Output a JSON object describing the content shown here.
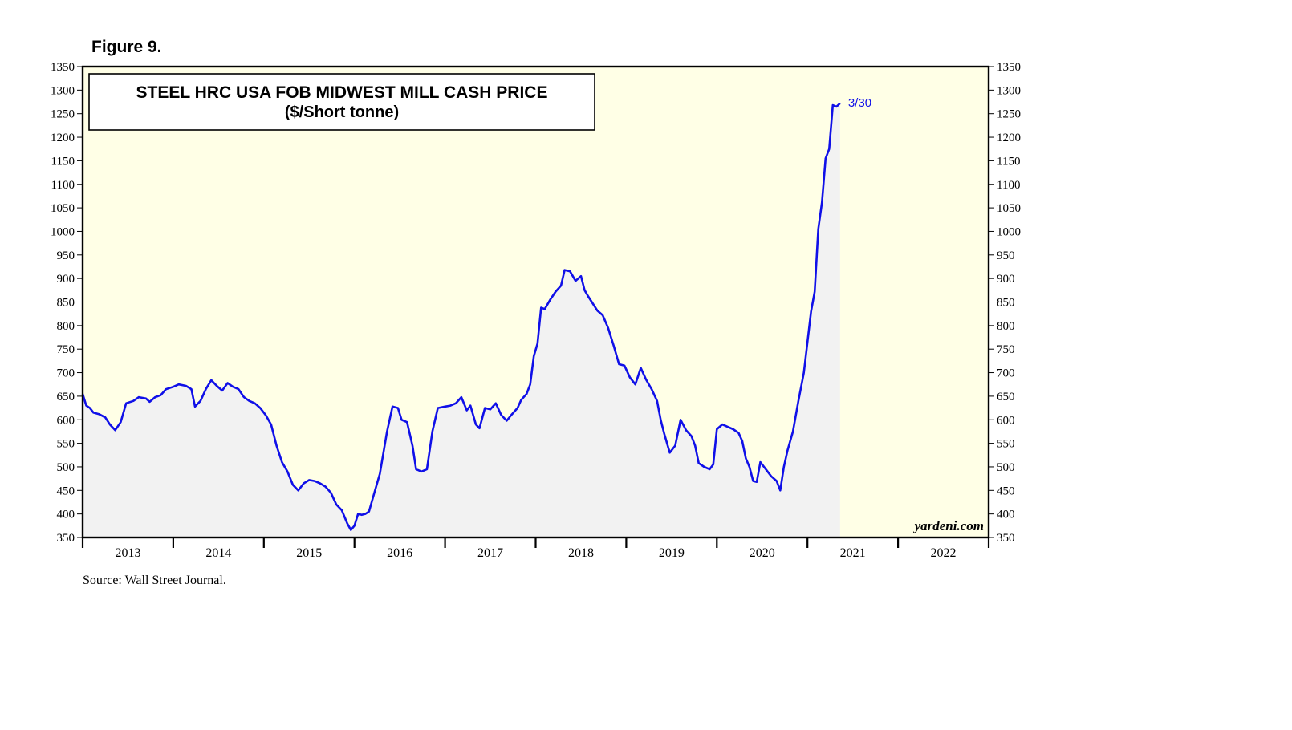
{
  "figure_label": "Figure 9.",
  "source": "Source: Wall Street Journal.",
  "watermark": "yardeni.com",
  "colors": {
    "plot_bg": "#ffffe6",
    "area_fill": "#f2f2f2",
    "line": "#1010e8",
    "frame": "#000000"
  },
  "chart_data": {
    "type": "line",
    "title": "STEEL HRC USA FOB MIDWEST MILL CASH PRICE",
    "subtitle": "($/Short tonne)",
    "xlabel": "",
    "ylabel": "",
    "ylim": [
      350,
      1350
    ],
    "yticks": [
      350,
      400,
      450,
      500,
      550,
      600,
      650,
      700,
      750,
      800,
      850,
      900,
      950,
      1000,
      1050,
      1100,
      1150,
      1200,
      1250,
      1300,
      1350
    ],
    "xlim": [
      2013.0,
      2023.0
    ],
    "x_tick_labels": [
      "2013",
      "2014",
      "2015",
      "2016",
      "2017",
      "2018",
      "2019",
      "2020",
      "2021",
      "2022"
    ],
    "grid": false,
    "legend": "none",
    "end_label": "3/30",
    "series": [
      {
        "values": [
          [
            2013.0,
            655
          ],
          [
            2013.04,
            630
          ],
          [
            2013.08,
            625
          ],
          [
            2013.12,
            615
          ],
          [
            2013.18,
            612
          ],
          [
            2013.25,
            605
          ],
          [
            2013.3,
            590
          ],
          [
            2013.36,
            578
          ],
          [
            2013.42,
            595
          ],
          [
            2013.48,
            635
          ],
          [
            2013.56,
            640
          ],
          [
            2013.62,
            648
          ],
          [
            2013.7,
            645
          ],
          [
            2013.74,
            638
          ],
          [
            2013.8,
            648
          ],
          [
            2013.86,
            652
          ],
          [
            2013.92,
            665
          ],
          [
            2014.0,
            670
          ],
          [
            2014.06,
            675
          ],
          [
            2014.14,
            672
          ],
          [
            2014.2,
            665
          ],
          [
            2014.24,
            628
          ],
          [
            2014.3,
            640
          ],
          [
            2014.36,
            665
          ],
          [
            2014.42,
            684
          ],
          [
            2014.48,
            672
          ],
          [
            2014.54,
            662
          ],
          [
            2014.6,
            678
          ],
          [
            2014.66,
            670
          ],
          [
            2014.72,
            665
          ],
          [
            2014.78,
            648
          ],
          [
            2014.84,
            640
          ],
          [
            2014.9,
            635
          ],
          [
            2014.96,
            625
          ],
          [
            2015.02,
            610
          ],
          [
            2015.08,
            590
          ],
          [
            2015.14,
            545
          ],
          [
            2015.2,
            510
          ],
          [
            2015.26,
            490
          ],
          [
            2015.32,
            462
          ],
          [
            2015.38,
            450
          ],
          [
            2015.44,
            465
          ],
          [
            2015.5,
            472
          ],
          [
            2015.56,
            470
          ],
          [
            2015.62,
            465
          ],
          [
            2015.68,
            458
          ],
          [
            2015.74,
            445
          ],
          [
            2015.8,
            420
          ],
          [
            2015.86,
            408
          ],
          [
            2015.92,
            380
          ],
          [
            2015.96,
            366
          ],
          [
            2016.0,
            375
          ],
          [
            2016.04,
            400
          ],
          [
            2016.08,
            398
          ],
          [
            2016.12,
            400
          ],
          [
            2016.16,
            405
          ],
          [
            2016.22,
            445
          ],
          [
            2016.28,
            485
          ],
          [
            2016.32,
            530
          ],
          [
            2016.36,
            575
          ],
          [
            2016.42,
            628
          ],
          [
            2016.48,
            625
          ],
          [
            2016.52,
            600
          ],
          [
            2016.58,
            595
          ],
          [
            2016.64,
            545
          ],
          [
            2016.68,
            495
          ],
          [
            2016.74,
            490
          ],
          [
            2016.8,
            495
          ],
          [
            2016.86,
            575
          ],
          [
            2016.92,
            625
          ],
          [
            2017.0,
            628
          ],
          [
            2017.06,
            630
          ],
          [
            2017.12,
            635
          ],
          [
            2017.18,
            648
          ],
          [
            2017.24,
            620
          ],
          [
            2017.28,
            630
          ],
          [
            2017.34,
            590
          ],
          [
            2017.38,
            582
          ],
          [
            2017.44,
            625
          ],
          [
            2017.5,
            622
          ],
          [
            2017.56,
            635
          ],
          [
            2017.62,
            610
          ],
          [
            2017.68,
            598
          ],
          [
            2017.74,
            612
          ],
          [
            2017.8,
            625
          ],
          [
            2017.84,
            642
          ],
          [
            2017.9,
            655
          ],
          [
            2017.94,
            675
          ],
          [
            2017.98,
            735
          ],
          [
            2018.02,
            762
          ],
          [
            2018.06,
            838
          ],
          [
            2018.1,
            835
          ],
          [
            2018.16,
            855
          ],
          [
            2018.22,
            872
          ],
          [
            2018.28,
            885
          ],
          [
            2018.32,
            918
          ],
          [
            2018.38,
            915
          ],
          [
            2018.44,
            895
          ],
          [
            2018.5,
            905
          ],
          [
            2018.54,
            875
          ],
          [
            2018.58,
            862
          ],
          [
            2018.62,
            850
          ],
          [
            2018.68,
            832
          ],
          [
            2018.74,
            822
          ],
          [
            2018.8,
            795
          ],
          [
            2018.86,
            758
          ],
          [
            2018.92,
            718
          ],
          [
            2018.98,
            715
          ],
          [
            2019.04,
            690
          ],
          [
            2019.1,
            675
          ],
          [
            2019.16,
            710
          ],
          [
            2019.22,
            685
          ],
          [
            2019.28,
            665
          ],
          [
            2019.34,
            640
          ],
          [
            2019.38,
            600
          ],
          [
            2019.42,
            570
          ],
          [
            2019.48,
            530
          ],
          [
            2019.54,
            545
          ],
          [
            2019.6,
            600
          ],
          [
            2019.66,
            578
          ],
          [
            2019.72,
            565
          ],
          [
            2019.76,
            545
          ],
          [
            2019.8,
            508
          ],
          [
            2019.86,
            500
          ],
          [
            2019.92,
            495
          ],
          [
            2019.96,
            505
          ],
          [
            2020.0,
            580
          ],
          [
            2020.06,
            590
          ],
          [
            2020.12,
            585
          ],
          [
            2020.18,
            580
          ],
          [
            2020.24,
            572
          ],
          [
            2020.28,
            555
          ],
          [
            2020.32,
            518
          ],
          [
            2020.36,
            500
          ],
          [
            2020.4,
            470
          ],
          [
            2020.44,
            468
          ],
          [
            2020.48,
            510
          ],
          [
            2020.54,
            495
          ],
          [
            2020.6,
            480
          ],
          [
            2020.66,
            470
          ],
          [
            2020.7,
            450
          ],
          [
            2020.74,
            500
          ],
          [
            2020.78,
            535
          ],
          [
            2020.84,
            575
          ],
          [
            2020.9,
            640
          ],
          [
            2020.96,
            700
          ],
          [
            2021.0,
            765
          ],
          [
            2021.04,
            830
          ],
          [
            2021.08,
            872
          ],
          [
            2021.12,
            1005
          ],
          [
            2021.16,
            1062
          ],
          [
            2021.2,
            1155
          ],
          [
            2021.24,
            1175
          ],
          [
            2021.28,
            1268
          ],
          [
            2021.32,
            1265
          ],
          [
            2021.36,
            1272
          ]
        ]
      }
    ]
  }
}
